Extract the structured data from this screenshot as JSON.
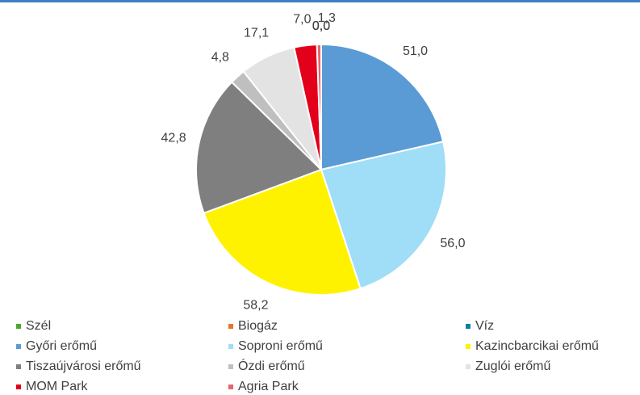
{
  "chart_data": {
    "type": "pie",
    "categories": [
      "Szél",
      "Biogáz",
      "Víz",
      "Győri erőmű",
      "Soproni erőmű",
      "Kazincbarcikai erőmű",
      "Tiszaújvárosi erőmű",
      "Ózdi erőmű",
      "Zuglói erőmű",
      "MOM Park",
      "Agria Park"
    ],
    "values": [
      0,
      0,
      0,
      51,
      56,
      58.2,
      42.8,
      4.8,
      17.1,
      7,
      1.3
    ],
    "value_labels": [
      "0,0",
      "0,0",
      "0,0",
      "51,0",
      "56,0",
      "58,2",
      "42,8",
      "4,8",
      "17,1",
      "7,0",
      "1,3"
    ],
    "colors": [
      "#4ea72e",
      "#e97132",
      "#0f7fa8",
      "#5b9bd5",
      "#a0ddf7",
      "#fff200",
      "#7f7f7f",
      "#bfbfbf",
      "#e3e3e3",
      "#e2001a",
      "#e8636c"
    ],
    "legend": "bottom"
  }
}
